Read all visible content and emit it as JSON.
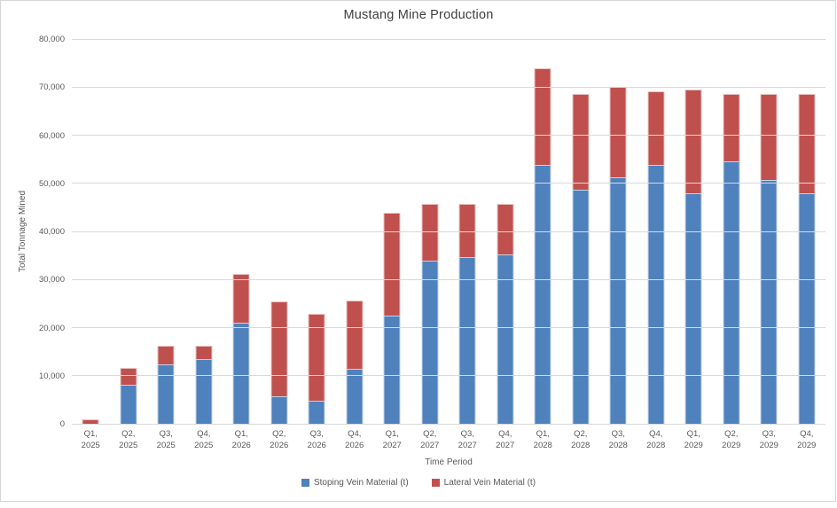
{
  "chart_data": {
    "type": "bar",
    "stacked": true,
    "title": "Mustang Mine Production",
    "xlabel": "Time Period",
    "ylabel": "Total Tonnage Mined",
    "ylim": [
      0,
      80000
    ],
    "ytick_interval": 10000,
    "grid": true,
    "legend_position": "bottom",
    "yticks": [
      {
        "value": 0,
        "label": "0"
      },
      {
        "value": 10000,
        "label": "10,000"
      },
      {
        "value": 20000,
        "label": "20,000"
      },
      {
        "value": 30000,
        "label": "30,000"
      },
      {
        "value": 40000,
        "label": "40,000"
      },
      {
        "value": 50000,
        "label": "50,000"
      },
      {
        "value": 60000,
        "label": "60,000"
      },
      {
        "value": 70000,
        "label": "70,000"
      },
      {
        "value": 80000,
        "label": "80,000"
      }
    ],
    "categories": [
      "Q1, 2025",
      "Q2, 2025",
      "Q3, 2025",
      "Q4, 2025",
      "Q1, 2026",
      "Q2, 2026",
      "Q3, 2026",
      "Q4, 2026",
      "Q1, 2027",
      "Q2, 2027",
      "Q3, 2027",
      "Q4, 2027",
      "Q1, 2028",
      "Q2, 2028",
      "Q3, 2028",
      "Q4, 2028",
      "Q1, 2029",
      "Q2, 2029",
      "Q3, 2029",
      "Q4, 2029"
    ],
    "series": [
      {
        "name": "Stoping Vein Material (t)",
        "slug": "stoping-vein",
        "color": "#4F81BD",
        "values": [
          0,
          8200,
          12300,
          13500,
          21000,
          5700,
          4800,
          11500,
          22400,
          34000,
          34600,
          35200,
          53900,
          48600,
          51200,
          53900,
          48000,
          54600,
          50700,
          48000
        ]
      },
      {
        "name": "Lateral Vein Material (t)",
        "slug": "lateral-vein",
        "color": "#C0504D",
        "values": [
          1000,
          3400,
          4000,
          2800,
          10200,
          19800,
          18000,
          14100,
          21400,
          11800,
          11200,
          10600,
          20000,
          19900,
          18800,
          15300,
          21500,
          13900,
          17800,
          20500
        ]
      }
    ],
    "style_colors": {
      "gridline": "#D9D9D9",
      "axis_text": "#595959",
      "title_text": "#404040",
      "frame_border": "#D6D6D6"
    }
  }
}
